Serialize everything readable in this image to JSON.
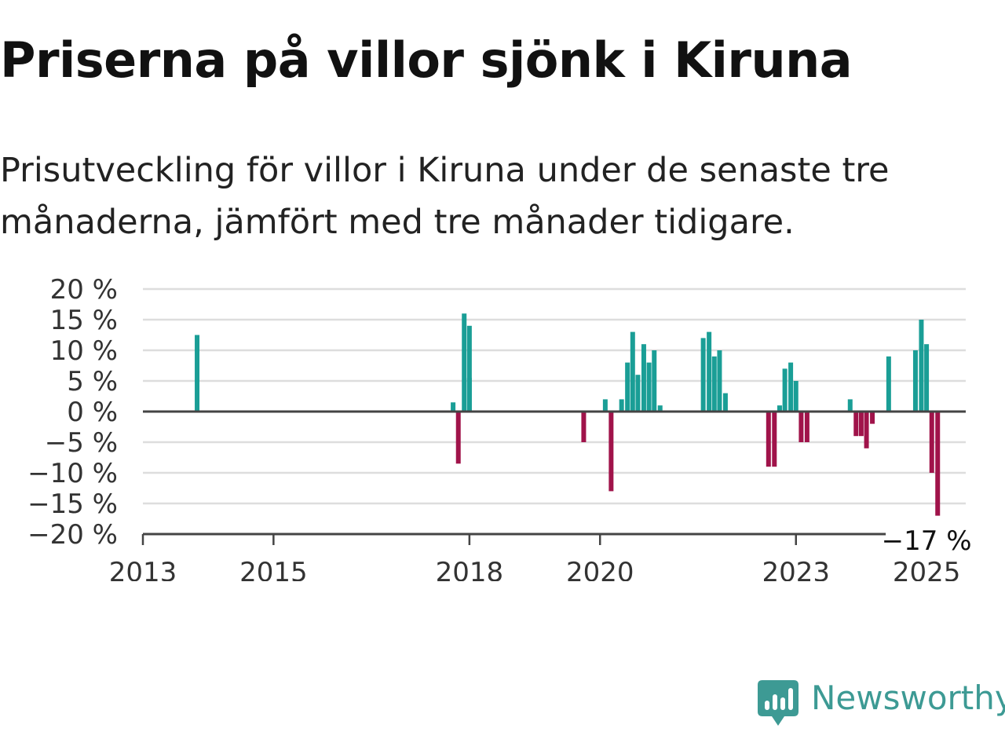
{
  "title": "Priserna på villor sjönk i Kiruna",
  "subtitle": "Prisutveckling för villor i Kiruna under de senaste tre månaderna, jämfört med tre månader tidigare.",
  "brand": {
    "name": "Newsworthy",
    "color": "#3d9a94",
    "icon": "newsworthy-chart-icon"
  },
  "chart_data": {
    "type": "bar",
    "title": "Priserna på villor sjönk i Kiruna",
    "subtitle": "Prisutveckling för villor i Kiruna under de senaste tre månaderna, jämfört med tre månader tidigare.",
    "ylim": [
      -20,
      20
    ],
    "yticks": [
      20,
      15,
      10,
      5,
      0,
      -5,
      -10,
      -15,
      -20
    ],
    "ytick_labels": [
      "20 %",
      "15 %",
      "10 %",
      "5 %",
      "0 %",
      "−5 %",
      "−10 %",
      "−15 %",
      "−20 %"
    ],
    "xlim": [
      2013.0,
      2025.6
    ],
    "xticks": [
      2013,
      2015,
      2018,
      2020,
      2023,
      2025
    ],
    "xtick_labels": [
      "2013",
      "2015",
      "2018",
      "2020",
      "2023",
      "2025"
    ],
    "grid": true,
    "positive_color": "#1a9e96",
    "negative_color": "#a0134a",
    "annotation": {
      "text": "−17 %",
      "x": 2025.0,
      "y": -17
    },
    "series": [
      {
        "points": [
          {
            "x": 2013.83,
            "y": 12.5
          },
          {
            "x": 2017.75,
            "y": 1.5
          },
          {
            "x": 2017.83,
            "y": -8.5
          },
          {
            "x": 2017.92,
            "y": 16
          },
          {
            "x": 2018.0,
            "y": 5.5
          },
          {
            "x": 2018.0,
            "y": 14
          },
          {
            "x": 2019.75,
            "y": -5
          },
          {
            "x": 2020.08,
            "y": 2
          },
          {
            "x": 2020.17,
            "y": -13
          },
          {
            "x": 2020.33,
            "y": 2
          },
          {
            "x": 2020.42,
            "y": 8
          },
          {
            "x": 2020.5,
            "y": 13
          },
          {
            "x": 2020.58,
            "y": 6
          },
          {
            "x": 2020.67,
            "y": 11
          },
          {
            "x": 2020.75,
            "y": 8
          },
          {
            "x": 2020.83,
            "y": 10
          },
          {
            "x": 2020.92,
            "y": 1
          },
          {
            "x": 2021.58,
            "y": 12
          },
          {
            "x": 2021.67,
            "y": 13
          },
          {
            "x": 2021.75,
            "y": 9
          },
          {
            "x": 2021.83,
            "y": 10
          },
          {
            "x": 2021.92,
            "y": 3
          },
          {
            "x": 2022.58,
            "y": -9
          },
          {
            "x": 2022.67,
            "y": -9
          },
          {
            "x": 2022.75,
            "y": 1
          },
          {
            "x": 2022.83,
            "y": 7
          },
          {
            "x": 2022.92,
            "y": 8
          },
          {
            "x": 2023.0,
            "y": 5
          },
          {
            "x": 2023.08,
            "y": -5
          },
          {
            "x": 2023.17,
            "y": -5
          },
          {
            "x": 2023.83,
            "y": 2
          },
          {
            "x": 2023.92,
            "y": -4
          },
          {
            "x": 2024.0,
            "y": -4
          },
          {
            "x": 2024.08,
            "y": -6
          },
          {
            "x": 2024.17,
            "y": -2
          },
          {
            "x": 2024.42,
            "y": 9
          },
          {
            "x": 2024.83,
            "y": 10
          },
          {
            "x": 2024.92,
            "y": 15
          },
          {
            "x": 2025.0,
            "y": 11
          },
          {
            "x": 2025.08,
            "y": -10
          },
          {
            "x": 2025.17,
            "y": -17
          }
        ]
      }
    ]
  }
}
